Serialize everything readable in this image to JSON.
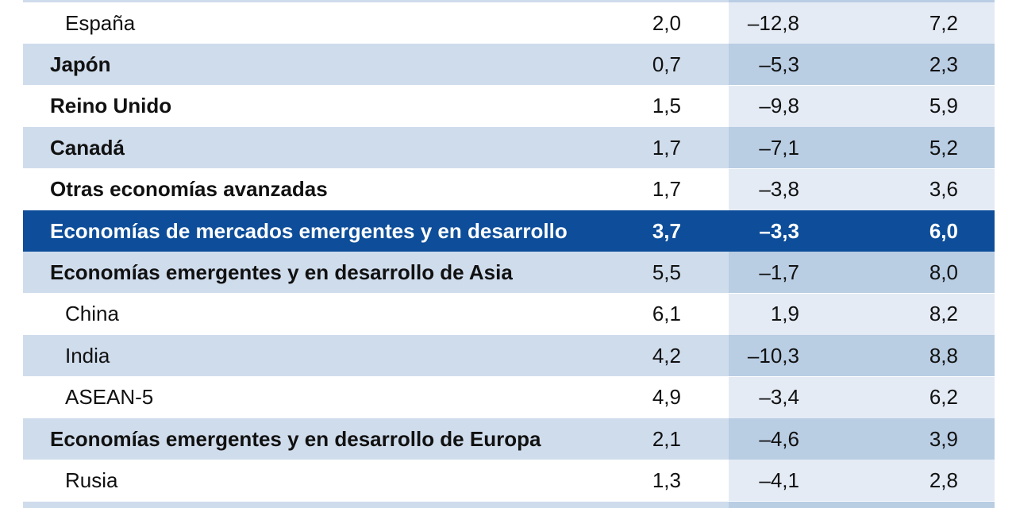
{
  "rows": [
    {
      "name": "España",
      "v1": "2,0",
      "v2": "–12,8",
      "v3": "7,2",
      "style": "white",
      "indent": true,
      "bold": false
    },
    {
      "name": "Japón",
      "v1": "0,7",
      "v2": "–5,3",
      "v3": "2,3",
      "style": "light",
      "indent": false,
      "bold": true
    },
    {
      "name": "Reino Unido",
      "v1": "1,5",
      "v2": "–9,8",
      "v3": "5,9",
      "style": "white",
      "indent": false,
      "bold": true
    },
    {
      "name": "Canadá",
      "v1": "1,7",
      "v2": "–7,1",
      "v3": "5,2",
      "style": "light",
      "indent": false,
      "bold": true
    },
    {
      "name": "Otras economías avanzadas",
      "v1": "1,7",
      "v2": "–3,8",
      "v3": "3,6",
      "style": "white",
      "indent": false,
      "bold": true
    },
    {
      "name": "Economías de mercados emergentes y en desarrollo",
      "v1": "3,7",
      "v2": "–3,3",
      "v3": "6,0",
      "style": "highlight",
      "indent": false,
      "bold": true
    },
    {
      "name": "Economías emergentes y en desarrollo de Asia",
      "v1": "5,5",
      "v2": "–1,7",
      "v3": "8,0",
      "style": "light",
      "indent": false,
      "bold": true
    },
    {
      "name": "China",
      "v1": "6,1",
      "v2": "1,9",
      "v3": "8,2",
      "style": "white",
      "indent": true,
      "bold": false
    },
    {
      "name": "India",
      "v1": "4,2",
      "v2": "–10,3",
      "v3": "8,8",
      "style": "light",
      "indent": true,
      "bold": false
    },
    {
      "name": "ASEAN-5",
      "v1": "4,9",
      "v2": "–3,4",
      "v3": "6,2",
      "style": "white",
      "indent": true,
      "bold": false
    },
    {
      "name": "Economías emergentes y en desarrollo de Europa",
      "v1": "2,1",
      "v2": "–4,6",
      "v3": "3,9",
      "style": "light",
      "indent": false,
      "bold": true
    },
    {
      "name": "Rusia",
      "v1": "1,3",
      "v2": "–4,1",
      "v3": "2,8",
      "style": "white",
      "indent": true,
      "bold": false
    }
  ]
}
